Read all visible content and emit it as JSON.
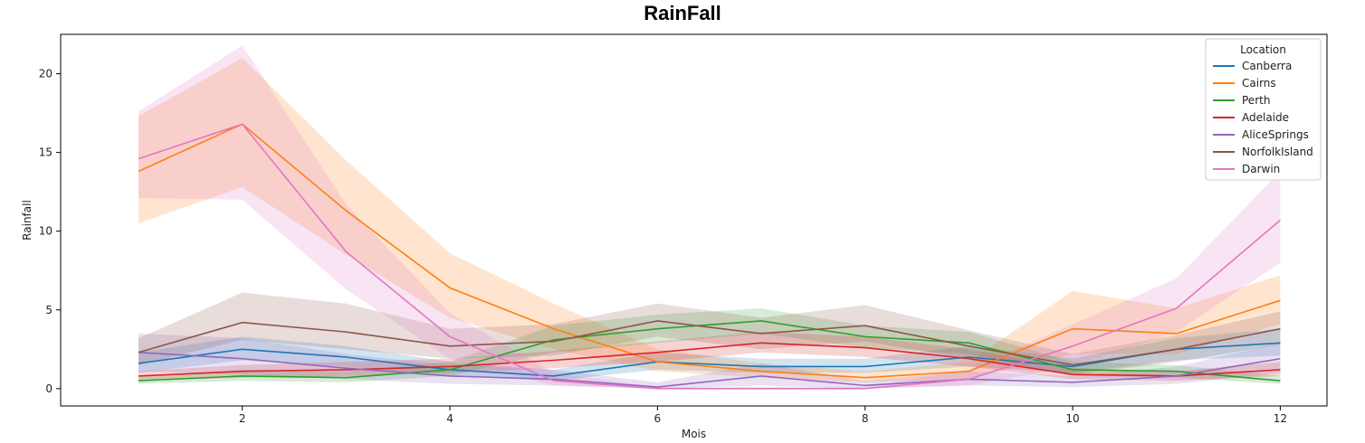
{
  "chart_data": {
    "type": "line",
    "title": "RainFall",
    "xlabel": "Mois",
    "ylabel": "Rainfall",
    "xlim": [
      0.25,
      12.45
    ],
    "ylim": [
      -1.1,
      22.5
    ],
    "xticks": [
      2,
      4,
      6,
      8,
      10,
      12
    ],
    "yticks": [
      0,
      5,
      10,
      15,
      20
    ],
    "grid": false,
    "legend": {
      "title": "Location",
      "placement": "top-right"
    },
    "x": [
      1,
      2,
      3,
      4,
      5,
      6,
      7,
      8,
      9,
      10,
      11,
      12
    ],
    "series": [
      {
        "name": "Canberra",
        "color": "#1f77b4",
        "values": [
          1.6,
          2.5,
          2.0,
          1.2,
          0.8,
          1.7,
          1.4,
          1.4,
          2.0,
          1.4,
          2.5,
          2.9
        ],
        "lower": [
          1.0,
          1.8,
          1.4,
          0.8,
          0.5,
          1.2,
          1.0,
          1.0,
          1.4,
          1.0,
          1.8,
          2.1
        ],
        "upper": [
          2.3,
          3.3,
          2.7,
          1.7,
          1.2,
          2.3,
          1.9,
          1.9,
          2.7,
          1.9,
          3.2,
          3.8
        ]
      },
      {
        "name": "Cairns",
        "color": "#ff7f0e",
        "values": [
          13.8,
          16.8,
          11.3,
          6.4,
          3.8,
          1.7,
          1.1,
          0.7,
          1.1,
          3.8,
          3.5,
          5.6
        ],
        "lower": [
          10.5,
          12.8,
          8.5,
          4.5,
          2.5,
          1.1,
          0.7,
          0.4,
          0.6,
          2.2,
          2.2,
          4.1
        ],
        "upper": [
          17.3,
          21.0,
          14.5,
          8.6,
          5.4,
          2.5,
          1.6,
          1.1,
          1.7,
          6.2,
          5.1,
          7.2
        ]
      },
      {
        "name": "Perth",
        "color": "#2ca02c",
        "values": [
          0.5,
          0.8,
          0.7,
          1.2,
          3.1,
          3.8,
          4.3,
          3.3,
          2.9,
          1.2,
          1.1,
          0.5
        ],
        "lower": [
          0.3,
          0.5,
          0.4,
          0.8,
          2.3,
          2.9,
          3.5,
          2.6,
          2.2,
          0.8,
          0.7,
          0.3
        ],
        "upper": [
          0.8,
          1.2,
          1.1,
          1.7,
          4.0,
          4.7,
          5.1,
          4.0,
          3.6,
          1.7,
          1.5,
          0.8
        ]
      },
      {
        "name": "Adelaide",
        "color": "#d62728",
        "values": [
          0.8,
          1.1,
          1.2,
          1.4,
          1.8,
          2.3,
          2.9,
          2.6,
          1.9,
          0.9,
          0.8,
          1.2
        ],
        "lower": [
          0.5,
          0.7,
          0.8,
          1.0,
          1.3,
          1.7,
          2.3,
          2.0,
          1.4,
          0.6,
          0.5,
          0.8
        ],
        "upper": [
          1.1,
          1.5,
          1.7,
          1.9,
          2.4,
          3.0,
          3.6,
          3.3,
          2.5,
          1.3,
          1.1,
          1.7
        ]
      },
      {
        "name": "AliceSprings",
        "color": "#9467bd",
        "values": [
          2.3,
          1.9,
          1.3,
          0.8,
          0.6,
          0.1,
          0.8,
          0.2,
          0.6,
          0.4,
          0.8,
          1.9
        ],
        "lower": [
          1.1,
          0.9,
          0.6,
          0.3,
          0.2,
          0.0,
          0.2,
          0.0,
          0.2,
          0.1,
          0.3,
          1.0
        ],
        "upper": [
          3.5,
          3.2,
          2.2,
          1.5,
          1.2,
          0.4,
          1.6,
          0.5,
          1.1,
          0.8,
          1.4,
          2.9
        ]
      },
      {
        "name": "NorfolkIsland",
        "color": "#8c564b",
        "values": [
          2.3,
          4.2,
          3.6,
          2.7,
          3.0,
          4.3,
          3.5,
          4.0,
          2.7,
          1.5,
          2.5,
          3.8
        ],
        "lower": [
          1.5,
          3.1,
          2.5,
          1.9,
          2.1,
          3.3,
          2.5,
          3.0,
          1.9,
          0.9,
          1.7,
          2.8
        ],
        "upper": [
          3.2,
          6.1,
          5.4,
          3.8,
          4.1,
          5.4,
          4.5,
          5.3,
          3.7,
          2.2,
          3.4,
          4.9
        ]
      },
      {
        "name": "Darwin",
        "color": "#e377c2",
        "values": [
          14.6,
          16.8,
          8.7,
          3.3,
          0.5,
          0.0,
          0.0,
          0.0,
          0.6,
          2.7,
          5.1,
          10.7
        ],
        "lower": [
          12.1,
          12.0,
          6.3,
          1.9,
          0.2,
          0.0,
          0.0,
          0.0,
          0.2,
          1.4,
          3.6,
          8.0
        ],
        "upper": [
          17.6,
          21.8,
          11.7,
          4.8,
          1.0,
          0.1,
          0.1,
          0.1,
          1.2,
          4.1,
          7.0,
          13.8
        ]
      }
    ]
  }
}
